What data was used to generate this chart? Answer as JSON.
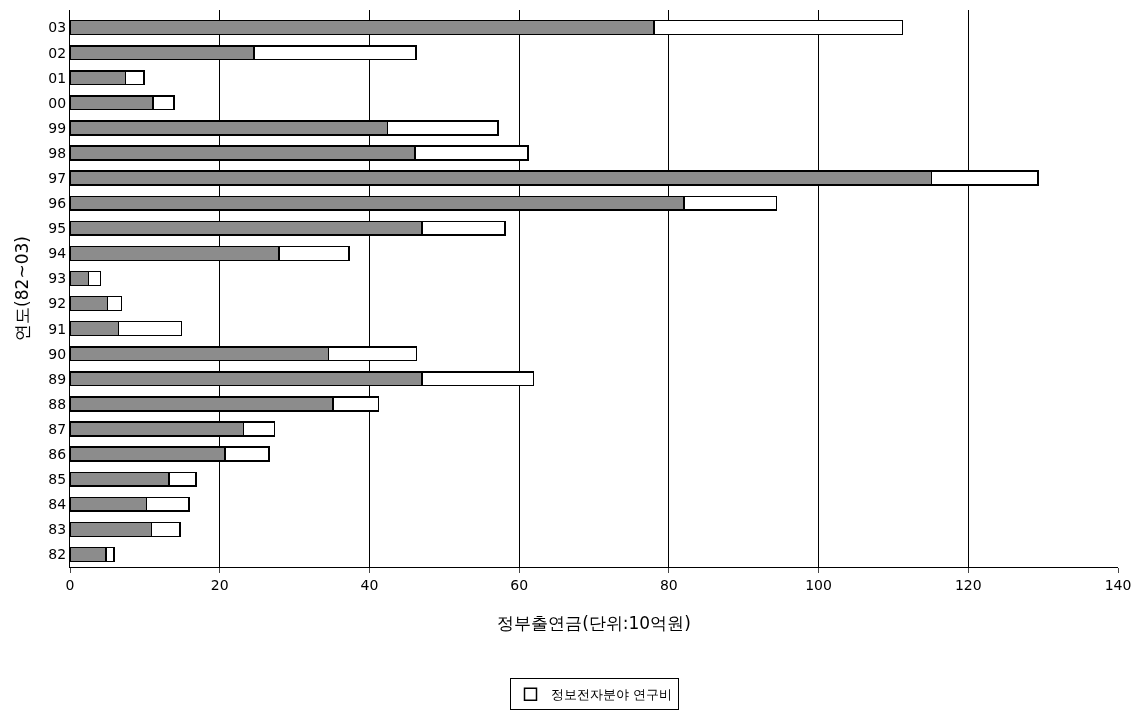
{
  "chart_data": {
    "type": "bar",
    "orientation": "horizontal",
    "stacked": true,
    "categories": [
      "03",
      "02",
      "01",
      "00",
      "99",
      "98",
      "97",
      "96",
      "95",
      "94",
      "93",
      "92",
      "91",
      "90",
      "89",
      "88",
      "87",
      "86",
      "85",
      "84",
      "83",
      "82"
    ],
    "series": [
      {
        "color": "#8c8c8c",
        "values": [
          78.0,
          24.6,
          7.4,
          11.1,
          42.4,
          46.1,
          115.1,
          82.0,
          47.0,
          27.9,
          2.5,
          5.0,
          6.5,
          34.5,
          47.0,
          35.1,
          23.2,
          20.7,
          13.2,
          10.2,
          10.9,
          4.8
        ]
      },
      {
        "name": "정보전자분야 연구비",
        "color": "#ffffff",
        "values": [
          33.2,
          21.6,
          2.5,
          2.8,
          14.8,
          15.1,
          14.2,
          12.4,
          11.1,
          9.4,
          1.6,
          1.9,
          8.4,
          11.8,
          14.9,
          6.1,
          4.1,
          5.9,
          3.6,
          5.7,
          3.8,
          1.1
        ]
      }
    ],
    "xlabel": "정부출연금(단위:10억원)",
    "ylabel": "연도(82~03)",
    "xlim": [
      0,
      140
    ],
    "xticks": [
      0,
      20,
      40,
      60,
      80,
      100,
      120,
      140
    ],
    "grid": "x",
    "legend": "bottom"
  }
}
